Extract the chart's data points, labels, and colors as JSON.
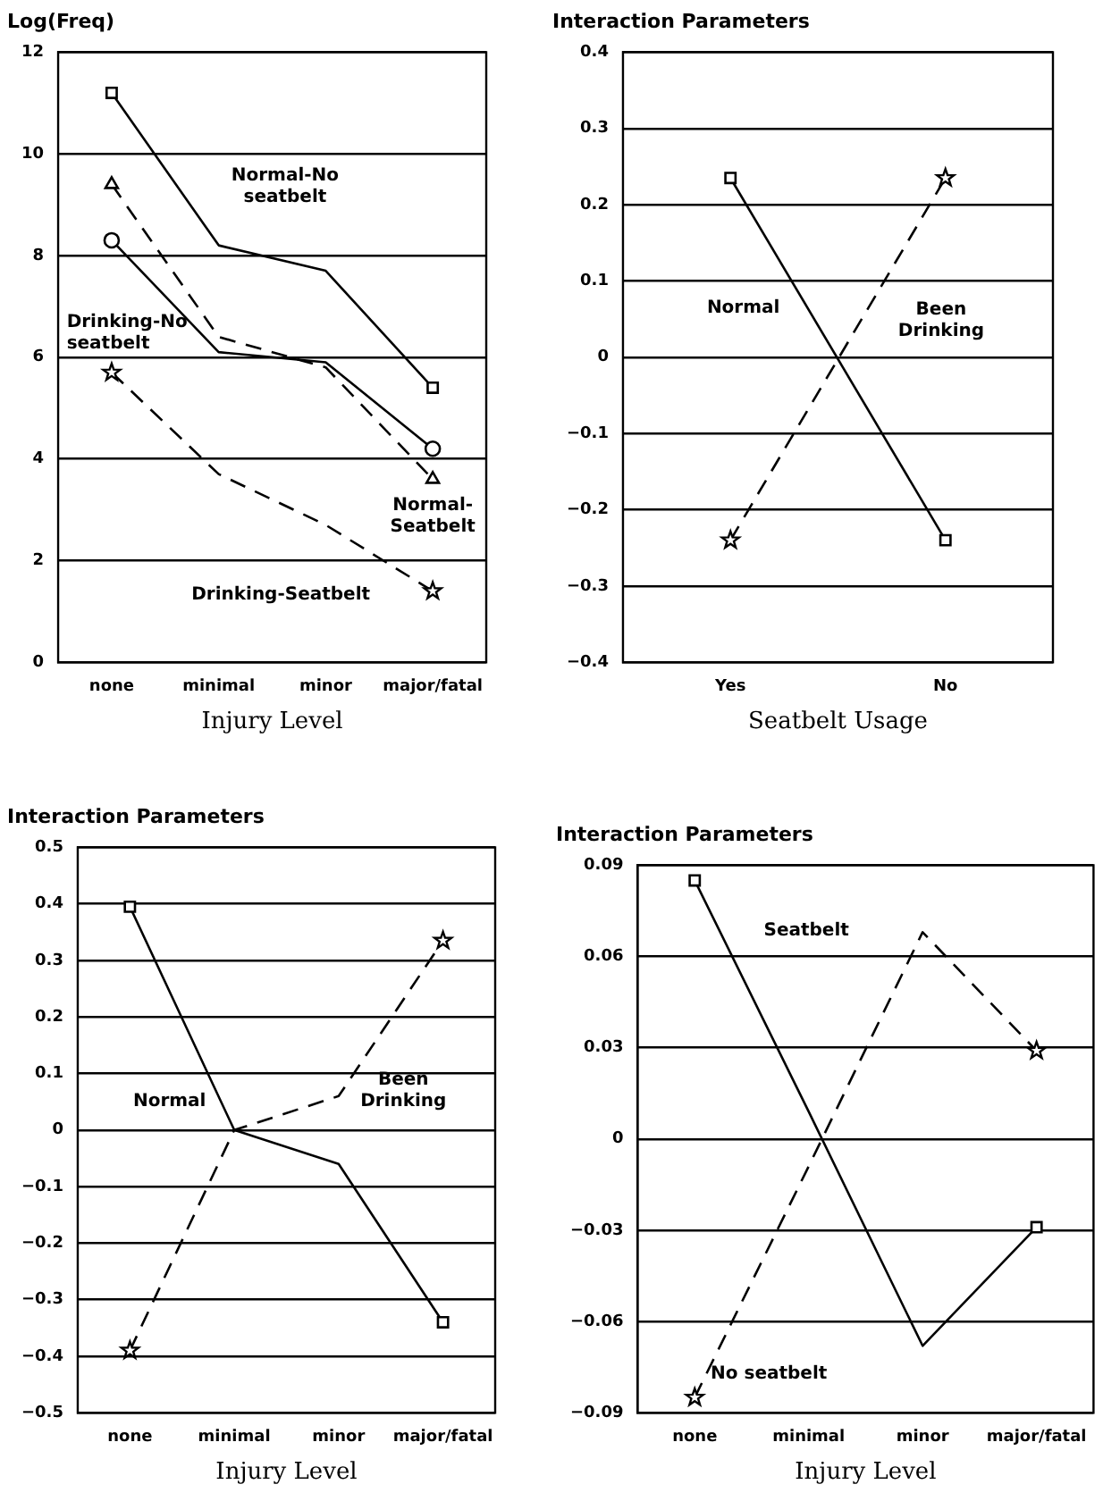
{
  "chart_data": [
    {
      "type": "line",
      "ylabel": "Log(Freq)",
      "xlabel": "Injury Level",
      "categories": [
        "none",
        "minimal",
        "minor",
        "major/fatal"
      ],
      "ylim": [
        0,
        12
      ],
      "yticks": [
        0,
        2,
        4,
        6,
        8,
        10,
        12
      ],
      "grid": "y",
      "legend": false,
      "series": [
        {
          "name": "Normal-No seatbelt",
          "color": "#000000",
          "marker": "square",
          "line_style": "solid",
          "values": [
            11.2,
            8.2,
            7.7,
            5.4
          ]
        },
        {
          "name": "Normal-Seatbelt",
          "color": "#000000",
          "marker": "triangle",
          "line_style": "dashed",
          "values": [
            9.4,
            6.4,
            5.8,
            3.6
          ]
        },
        {
          "name": "Drinking-No seatbelt",
          "color": "#000000",
          "marker": "circle",
          "line_style": "solid",
          "values": [
            8.3,
            6.1,
            5.9,
            4.2
          ]
        },
        {
          "name": "Drinking-Seatbelt",
          "color": "#000000",
          "marker": "star",
          "line_style": "dashed",
          "values": [
            5.7,
            3.7,
            2.7,
            1.4
          ]
        }
      ]
    },
    {
      "type": "line",
      "title": "Interaction Parameters",
      "xlabel": "Seatbelt Usage",
      "categories": [
        "Yes",
        "No"
      ],
      "ylim": [
        -0.4,
        0.4
      ],
      "yticks": [
        -0.4,
        -0.3,
        -0.2,
        -0.1,
        0,
        0.1,
        0.2,
        0.3,
        0.4
      ],
      "grid": "y",
      "legend": false,
      "series": [
        {
          "name": "Normal",
          "color": "#000000",
          "marker": "square",
          "line_style": "solid",
          "values": [
            0.235,
            -0.24
          ]
        },
        {
          "name": "Been Drinking",
          "color": "#000000",
          "marker": "star",
          "line_style": "dashed",
          "values": [
            -0.24,
            0.235
          ]
        }
      ]
    },
    {
      "type": "line",
      "title": "Interaction Parameters",
      "xlabel": "Injury Level",
      "categories": [
        "none",
        "minimal",
        "minor",
        "major/fatal"
      ],
      "ylim": [
        -0.5,
        0.5
      ],
      "yticks": [
        -0.5,
        -0.4,
        -0.3,
        -0.2,
        -0.1,
        0,
        0.1,
        0.2,
        0.3,
        0.4,
        0.5
      ],
      "grid": "y",
      "legend": false,
      "series": [
        {
          "name": "Normal",
          "color": "#000000",
          "marker": "square",
          "line_style": "solid",
          "values": [
            0.395,
            0,
            -0.06,
            -0.34
          ]
        },
        {
          "name": "Been Drinking",
          "color": "#000000",
          "marker": "star",
          "line_style": "dashed",
          "values": [
            -0.39,
            0,
            0.06,
            0.335
          ]
        }
      ]
    },
    {
      "type": "line",
      "title": "Interaction Parameters",
      "xlabel": "Injury Level",
      "categories": [
        "none",
        "minimal",
        "minor",
        "major/fatal"
      ],
      "ylim": [
        -0.09,
        0.09
      ],
      "yticks": [
        -0.09,
        -0.06,
        -0.03,
        0,
        0.03,
        0.06,
        0.09
      ],
      "grid": "y",
      "legend": false,
      "series": [
        {
          "name": "Seatbelt",
          "color": "#000000",
          "marker": "square",
          "line_style": "solid",
          "values": [
            0.085,
            0.009,
            -0.068,
            -0.029
          ]
        },
        {
          "name": "No seatbelt",
          "color": "#000000",
          "marker": "star",
          "line_style": "dashed",
          "values": [
            -0.085,
            -0.009,
            0.068,
            0.029
          ]
        }
      ]
    }
  ]
}
